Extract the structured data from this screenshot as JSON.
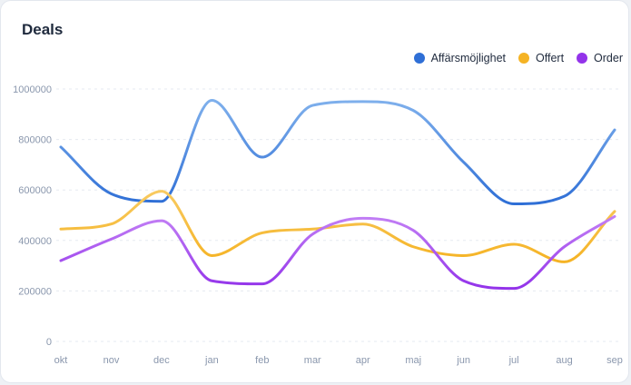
{
  "card": {
    "title": "Deals"
  },
  "chart_data": {
    "type": "line",
    "title": "Deals",
    "xlabel": "",
    "ylabel": "",
    "categories": [
      "okt",
      "nov",
      "dec",
      "jan",
      "feb",
      "mar",
      "apr",
      "maj",
      "jun",
      "jul",
      "aug",
      "sep"
    ],
    "yticks": [
      "0",
      "200000",
      "400000",
      "600000",
      "800000",
      "1000000"
    ],
    "ylim": [
      0,
      1000000
    ],
    "grid": true,
    "legend_position": "top-right",
    "series": [
      {
        "name": "Affärsmöjlighet",
        "color": "#2f6fd6",
        "color_light": "#7fb0ec",
        "values": [
          770000,
          585000,
          555000,
          955000,
          730000,
          935000,
          950000,
          915000,
          710000,
          545000,
          575000,
          838000
        ]
      },
      {
        "name": "Offert",
        "color": "#f5b324",
        "color_light": "#f8ca60",
        "values": [
          445000,
          465000,
          595000,
          340000,
          430000,
          445000,
          465000,
          375000,
          340000,
          385000,
          315000,
          515000
        ]
      },
      {
        "name": "Order",
        "color": "#9333ea",
        "color_light": "#c27ff5",
        "values": [
          320000,
          405000,
          478000,
          240000,
          228000,
          425000,
          488000,
          440000,
          240000,
          210000,
          375000,
          495000
        ]
      }
    ]
  }
}
